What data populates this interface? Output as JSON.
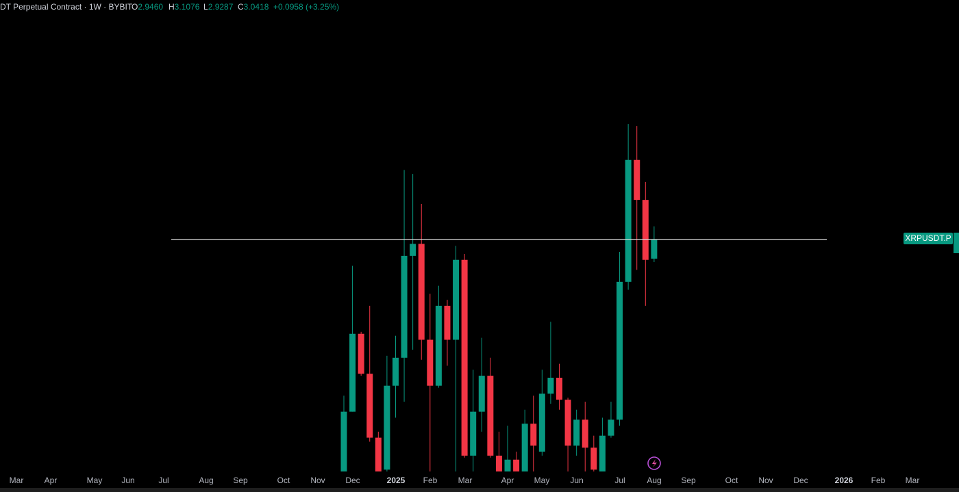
{
  "header": {
    "symbol": "DT Perpetual Contract · 1W · BYBIT",
    "o_label": "O",
    "open": "2.9460",
    "h_label": "H",
    "high": "3.1076",
    "l_label": "L",
    "low": "2.9287",
    "c_label": "C",
    "close": "3.0418",
    "change": "+0.0958 (+3.25%)"
  },
  "chart_data": {
    "type": "candlestick",
    "series": [
      {
        "name": "XRPUSDT.P",
        "color_up": "#089981",
        "color_down": "#f23645",
        "open": [
          1.88,
          2.18,
          2.57,
          2.37,
          2.05,
          1.89,
          2.31,
          2.45,
          2.96,
          3.02,
          2.54,
          2.31,
          2.71,
          2.54,
          2.94,
          1.96,
          2.18,
          2.36,
          1.96,
          1.88,
          1.94,
          1.88,
          2.12,
          1.98,
          2.27,
          2.35,
          2.24,
          2.01,
          2.14,
          2.0,
          1.88,
          2.06,
          2.14,
          2.83,
          3.44,
          3.24,
          2.946
        ],
        "high": [
          2.26,
          2.91,
          2.58,
          2.71,
          2.08,
          2.46,
          2.56,
          3.39,
          3.37,
          3.22,
          2.77,
          2.81,
          2.74,
          3.01,
          2.97,
          2.39,
          2.55,
          2.45,
          2.08,
          2.11,
          1.98,
          2.19,
          2.26,
          2.39,
          2.63,
          2.42,
          2.25,
          2.19,
          2.23,
          2.06,
          2.15,
          2.23,
          2.98,
          3.62,
          3.61,
          3.33,
          3.1076
        ],
        "low": [
          1.88,
          2.18,
          2.36,
          2.03,
          1.88,
          1.88,
          2.15,
          2.23,
          2.49,
          2.44,
          1.88,
          2.3,
          2.41,
          1.88,
          1.95,
          1.88,
          2.08,
          1.95,
          1.88,
          1.88,
          1.88,
          1.88,
          1.88,
          1.96,
          2.22,
          2.19,
          1.88,
          1.96,
          1.88,
          1.88,
          1.88,
          2.05,
          2.11,
          2.79,
          2.89,
          2.71,
          2.9287
        ],
        "close": [
          2.18,
          2.57,
          2.37,
          2.05,
          1.88,
          2.31,
          2.45,
          2.96,
          3.02,
          2.54,
          2.31,
          2.71,
          2.54,
          2.94,
          1.96,
          2.18,
          2.36,
          1.96,
          1.88,
          1.94,
          1.88,
          2.12,
          2.01,
          2.27,
          2.35,
          2.24,
          2.01,
          2.14,
          2.0,
          1.89,
          2.06,
          2.14,
          2.83,
          3.44,
          3.24,
          2.94,
          3.0418
        ]
      }
    ],
    "x_labels": [
      "Mar",
      "Apr",
      "May",
      "Jun",
      "Jul",
      "Aug",
      "Sep",
      "Oct",
      "Nov",
      "Dec",
      "2025",
      "Feb",
      "Mar",
      "Apr",
      "May",
      "Jun",
      "Jul",
      "Aug",
      "Sep",
      "Oct",
      "Nov",
      "Dec",
      "2026",
      "Feb",
      "Mar"
    ]
  }
}
